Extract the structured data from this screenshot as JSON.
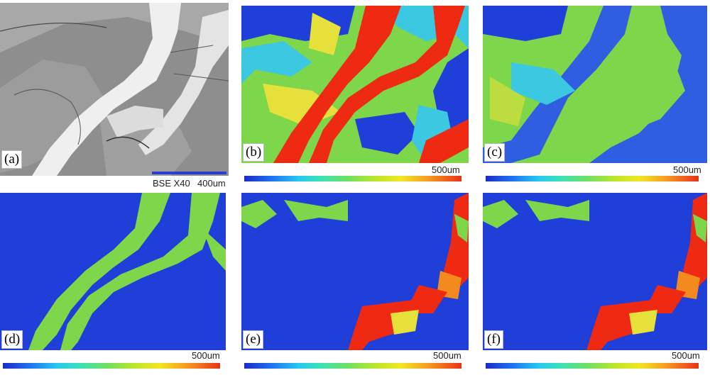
{
  "panels": [
    {
      "id": "a",
      "label": "(a)",
      "scale_text": "400um",
      "info_text": "BSE X40"
    },
    {
      "id": "b",
      "label": "(b)",
      "scale_text": "500um"
    },
    {
      "id": "c",
      "label": "(c)",
      "scale_text": "500um"
    },
    {
      "id": "d",
      "label": "(d)",
      "scale_text": "500um"
    },
    {
      "id": "e",
      "label": "(e)",
      "scale_text": "500um"
    },
    {
      "id": "f",
      "label": "(f)",
      "scale_text": "500um"
    }
  ],
  "colors": {
    "map_blue": "#1f3fd8",
    "map_green": "#7ed64a",
    "map_cyan": "#3cc8e0",
    "map_yellow": "#e6e03a",
    "map_red": "#ee2a12",
    "map_orange": "#f28a20",
    "bse_dark": "#7c7c7c",
    "bse_light": "#f2f2f2"
  }
}
